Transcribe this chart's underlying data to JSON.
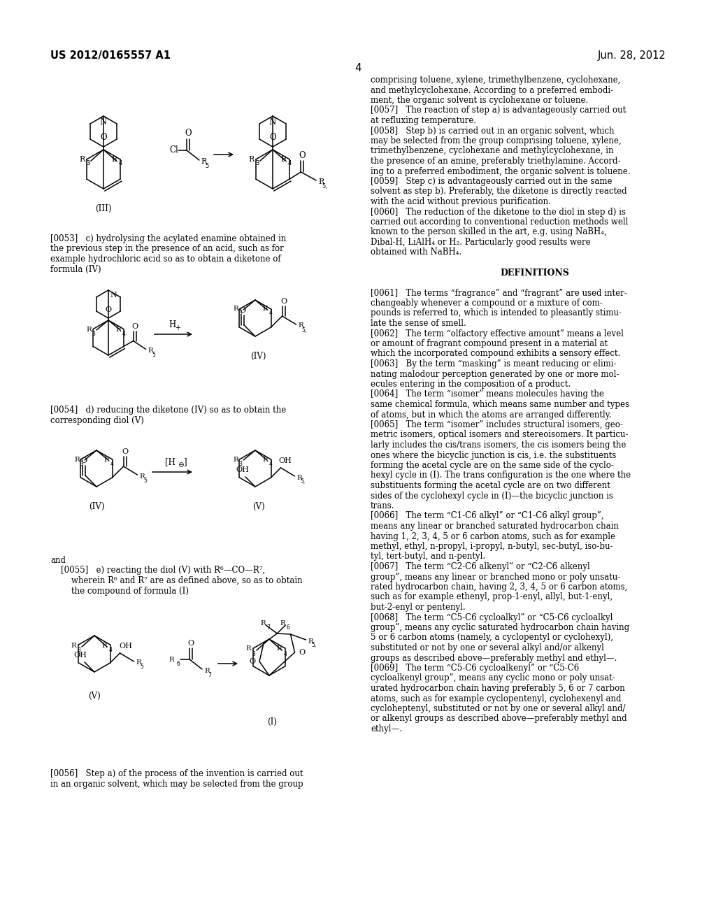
{
  "background_color": "#ffffff",
  "header_left": "US 2012/0165557 A1",
  "header_right": "Jun. 28, 2012",
  "page_number": "4",
  "para_0053_lines": [
    "[0053]   c) hydrolysing the acylated enamine obtained in",
    "the previous step in the presence of an acid, such as for",
    "example hydrochloric acid so as to obtain a diketone of",
    "formula (IV)"
  ],
  "para_0054_lines": [
    "[0054]   d) reducing the diketone (IV) so as to obtain the",
    "corresponding diol (V)"
  ],
  "para_0055_lines": [
    "and",
    "    [0055]   e) reacting the diol (V) with R⁶—CO—R⁷,",
    "        wherein R⁶ and R⁷ are as defined above, so as to obtain",
    "        the compound of formula (I)"
  ],
  "para_0056_lines": [
    "[0056]   Step a) of the process of the invention is carried out",
    "in an organic solvent, which may be selected from the group"
  ],
  "right_col_lines": [
    "comprising toluene, xylene, trimethylbenzene, cyclohexane,",
    "and methylcyclohexane. According to a preferred embodi-",
    "ment, the organic solvent is cyclohexane or toluene.",
    "[0057]   The reaction of step a) is advantageously carried out",
    "at refluxing temperature.",
    "[0058]   Step b) is carried out in an organic solvent, which",
    "may be selected from the group comprising toluene, xylene,",
    "trimethylbenzene, cyclohexane and methylcyclohexane, in",
    "the presence of an amine, preferably triethylamine. Accord-",
    "ing to a preferred embodiment, the organic solvent is toluene.",
    "[0059]   Step c) is advantageously carried out in the same",
    "solvent as step b). Preferably, the diketone is directly reacted",
    "with the acid without previous purification.",
    "[0060]   The reduction of the diketone to the diol in step d) is",
    "carried out according to conventional reduction methods well",
    "known to the person skilled in the art, e.g. using NaBH₄,",
    "Dibal-H, LiAlH₄ or H₂. Particularly good results were",
    "obtained with NaBH₄.",
    "",
    "DEFINITIONS",
    "",
    "[0061]   The terms “fragrance” and “fragrant” are used inter-",
    "changeably whenever a compound or a mixture of com-",
    "pounds is referred to, which is intended to pleasantly stimu-",
    "late the sense of smell.",
    "[0062]   The term “olfactory effective amount” means a level",
    "or amount of fragrant compound present in a material at",
    "which the incorporated compound exhibits a sensory effect.",
    "[0063]   By the term “masking” is meant reducing or elimi-",
    "nating malodour perception generated by one or more mol-",
    "ecules entering in the composition of a product.",
    "[0064]   The term “isomer” means molecules having the",
    "same chemical formula, which means same number and types",
    "of atoms, but in which the atoms are arranged differently.",
    "[0065]   The term “isomer” includes structural isomers, geo-",
    "metric isomers, optical isomers and stereoisomers. It particu-",
    "larly includes the cis/trans isomers, the cis isomers being the",
    "ones where the bicyclic junction is cis, i.e. the substituents",
    "forming the acetal cycle are on the same side of the cyclo-",
    "hexyl cycle in (I). The trans configuration is the one where the",
    "substituents forming the acetal cycle are on two different",
    "sides of the cyclohexyl cycle in (I)—the bicyclic junction is",
    "trans.",
    "[0066]   The term “C1-C6 alkyl” or “C1-C6 alkyl group”,",
    "means any linear or branched saturated hydrocarbon chain",
    "having 1, 2, 3, 4, 5 or 6 carbon atoms, such as for example",
    "methyl, ethyl, n-propyl, i-propyl, n-butyl, sec-butyl, iso-bu-",
    "tyl, tert-butyl, and n-pentyl.",
    "[0067]   The term “C2-C6 alkenyl” or “C2-C6 alkenyl",
    "group”, means any linear or branched mono or poly unsatu-",
    "rated hydrocarbon chain, having 2, 3, 4, 5 or 6 carbon atoms,",
    "such as for example ethenyl, prop-1-enyl, allyl, but-1-enyl,",
    "but-2-enyl or pentenyl.",
    "[0068]   The term “C5-C6 cycloalkyl” or “C5-C6 cycloalkyl",
    "group”, means any cyclic saturated hydrocarbon chain having",
    "5 or 6 carbon atoms (namely, a cyclopentyl or cyclohexyl),",
    "substituted or not by one or several alkyl and/or alkenyl",
    "groups as described above—preferably methyl and ethyl—.",
    "[0069]   The term “C5-C6 cycloalkenyl” or “C5-C6",
    "cycloalkenyl group”, means any cyclic mono or poly unsat-",
    "urated hydrocarbon chain having preferably 5, 6 or 7 carbon",
    "atoms, such as for example cyclopentenyl, cyclohexenyl and",
    "cycloheptenyl, substituted or not by one or several alkyl and/",
    "or alkenyl groups as described above—preferably methyl and",
    "ethyl—."
  ]
}
